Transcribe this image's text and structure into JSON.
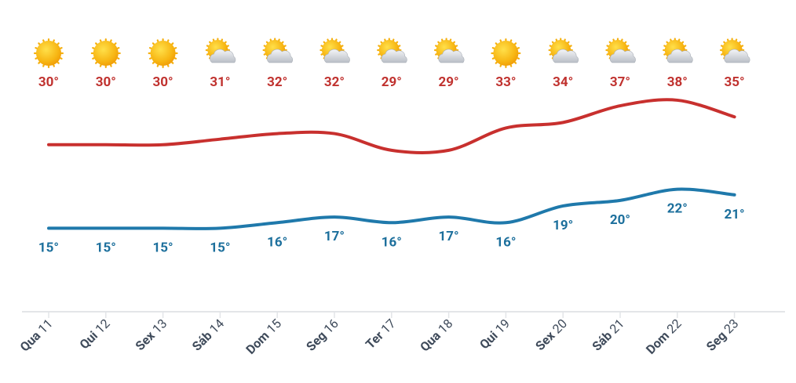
{
  "chart_data": {
    "type": "line",
    "categories": [
      "Qua 11",
      "Qui 12",
      "Sex 13",
      "Sáb 14",
      "Dom 15",
      "Seg 16",
      "Ter 17",
      "Qua 18",
      "Qui 19",
      "Sex 20",
      "Sáb 21",
      "Dom 22",
      "Seg 23"
    ],
    "icons": [
      "sun",
      "sun",
      "sun",
      "partly-cloudy",
      "partly-cloudy",
      "partly-cloudy",
      "partly-cloudy",
      "partly-cloudy",
      "sun",
      "partly-cloudy",
      "partly-cloudy",
      "partly-cloudy",
      "partly-cloudy"
    ],
    "series": [
      {
        "name": "max",
        "color": "#c8302e",
        "label_color": "#c0322f",
        "values": [
          30,
          30,
          30,
          31,
          32,
          32,
          29,
          29,
          33,
          34,
          37,
          38,
          35
        ],
        "value_labels": [
          "30°",
          "30°",
          "30°",
          "31°",
          "32°",
          "32°",
          "29°",
          "29°",
          "33°",
          "34°",
          "37°",
          "38°",
          "35°"
        ]
      },
      {
        "name": "min",
        "color": "#1f79ab",
        "label_color": "#1c6f9c",
        "values": [
          15,
          15,
          15,
          15,
          16,
          17,
          16,
          17,
          16,
          19,
          20,
          22,
          21
        ],
        "value_labels": [
          "15°",
          "15°",
          "15°",
          "15°",
          "16°",
          "17°",
          "16°",
          "17°",
          "16°",
          "19°",
          "20°",
          "22°",
          "21°"
        ]
      }
    ],
    "ylim": [
      0,
      56
    ]
  }
}
